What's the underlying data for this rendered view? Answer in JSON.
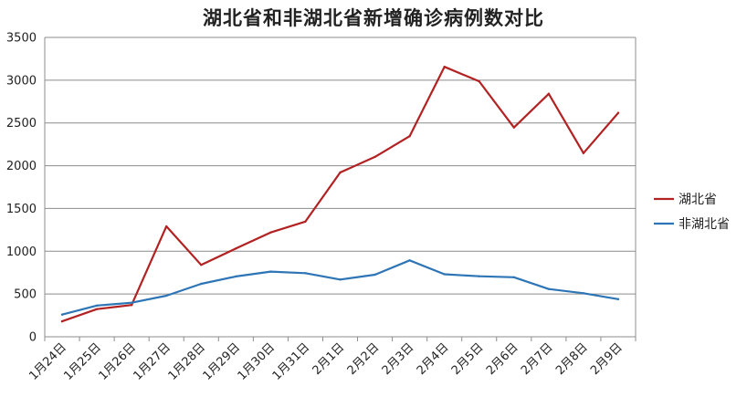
{
  "chart_data": {
    "type": "line",
    "title": "湖北省和非湖北省新增确诊病例数对比",
    "xlabel": "",
    "ylabel": "",
    "categories": [
      "1月24日",
      "1月25日",
      "1月26日",
      "1月27日",
      "1月28日",
      "1月29日",
      "1月30日",
      "1月31日",
      "2月1日",
      "2月2日",
      "2月3日",
      "2月4日",
      "2月5日",
      "2月6日",
      "2月7日",
      "2月8日",
      "2月9日"
    ],
    "ylim": [
      0,
      3500
    ],
    "yticks": [
      0,
      500,
      1000,
      1500,
      2000,
      2500,
      3000,
      3500
    ],
    "grid": true,
    "legend": "right",
    "series": [
      {
        "name": "湖北省",
        "color": "#b22222",
        "values": [
          180,
          323,
          371,
          1291,
          840,
          1032,
          1220,
          1347,
          1921,
          2103,
          2345,
          3156,
          2987,
          2447,
          2841,
          2147,
          2618
        ]
      },
      {
        "name": "非湖北省",
        "color": "#2e75b6",
        "values": [
          259,
          365,
          398,
          480,
          619,
          705,
          762,
          744,
          669,
          726,
          893,
          731,
          707,
          696,
          558,
          509,
          440
        ]
      }
    ]
  }
}
